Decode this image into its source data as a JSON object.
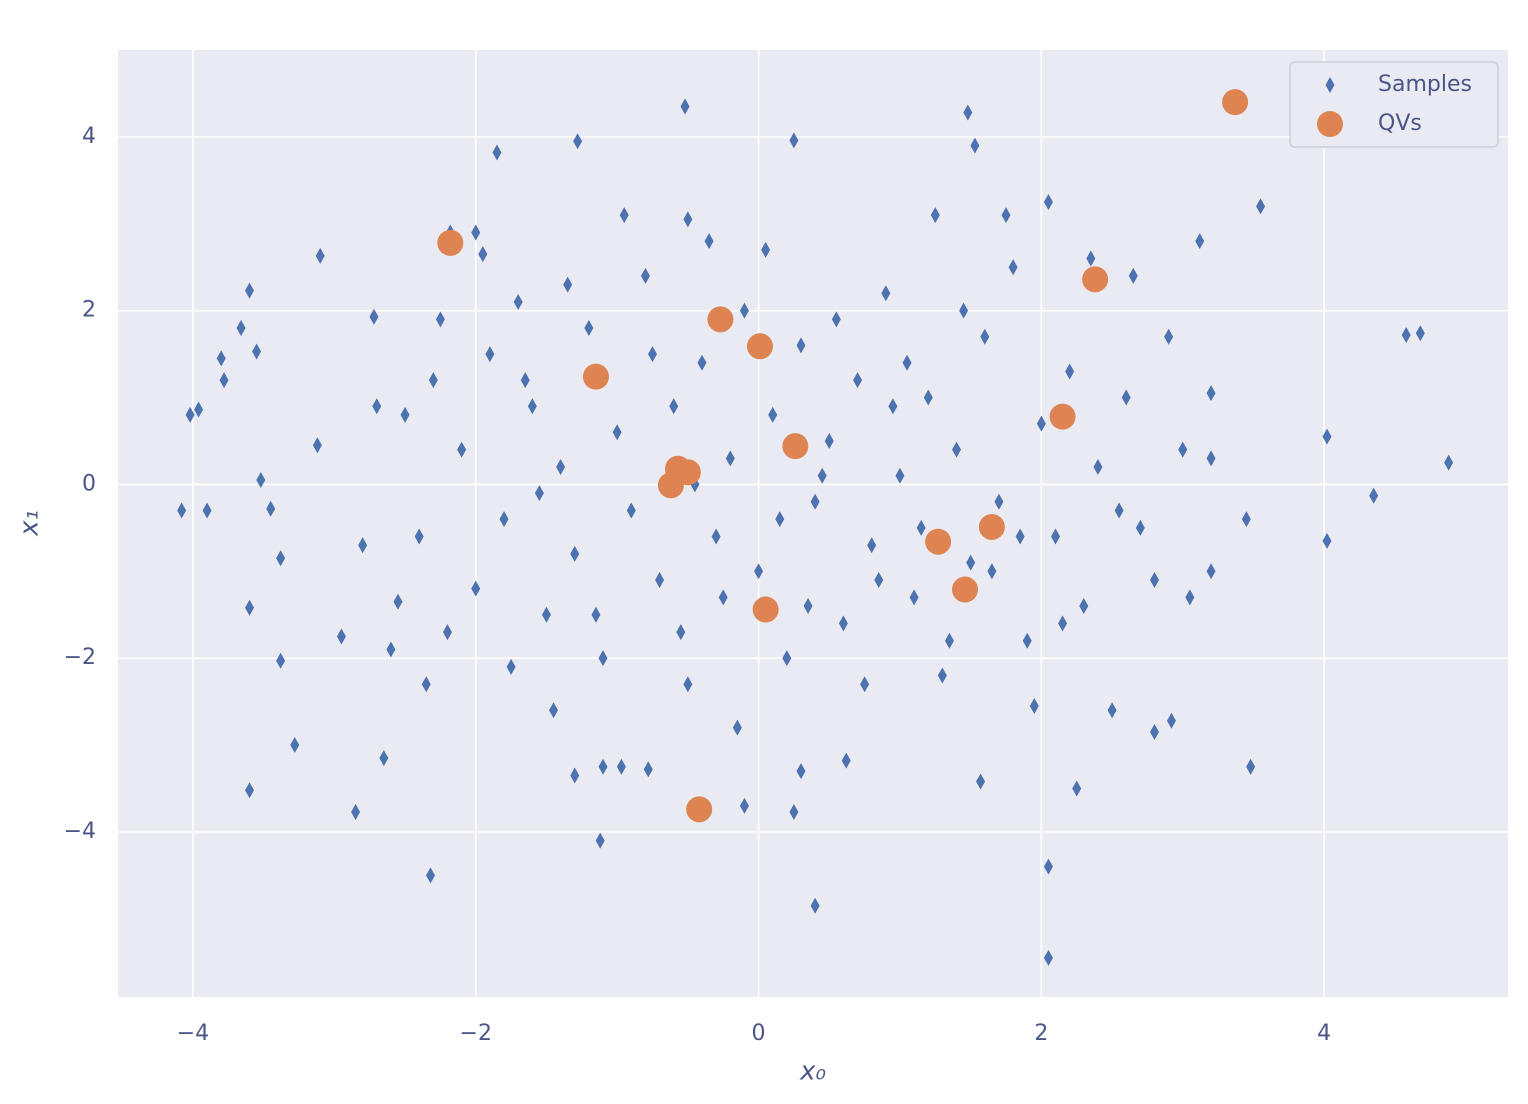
{
  "chart_data": {
    "type": "scatter",
    "xlabel": "x₀",
    "ylabel": "x₁",
    "xlim": [
      -4.53,
      5.3
    ],
    "ylim": [
      -5.9,
      5.0
    ],
    "xticks": [
      {
        "value": -4,
        "label": "−4"
      },
      {
        "value": -2,
        "label": "−2"
      },
      0,
      2,
      4
    ],
    "yticks": [
      {
        "value": -4,
        "label": "−4"
      },
      {
        "value": -2,
        "label": "−2"
      },
      0,
      2,
      4
    ],
    "grid": true,
    "legend": "upper right",
    "series": [
      {
        "name": "Samples",
        "color": "#4c72b0",
        "marker": "diamond",
        "x": [
          -4.08,
          -4.02,
          -3.96,
          -3.9,
          -3.8,
          -3.78,
          -3.66,
          -3.6,
          -3.6,
          -3.6,
          -3.55,
          -3.52,
          -3.45,
          -3.38,
          -3.38,
          -3.28,
          -3.1,
          -3.12,
          -2.85,
          -2.72,
          -2.65,
          -2.32,
          -2.18,
          -1.85,
          -1.28,
          -1.12,
          -0.52,
          -0.5,
          0.25,
          0.4,
          0.25,
          1.48,
          1.53,
          2.05,
          2.05,
          2.05,
          2.25,
          3.55,
          3.48,
          3.45,
          4.02,
          4.02,
          4.35,
          4.58,
          4.68,
          4.88,
          3.2,
          3.12,
          2.92,
          2.8,
          -0.1,
          -1.1,
          -0.97,
          -0.78,
          0.3,
          0.62,
          1.57,
          -1.3,
          -2.95,
          -2.6,
          -2.5,
          -2.4,
          -2.3,
          -2.2,
          -2.1,
          -2.0,
          -1.9,
          -1.8,
          -1.7,
          -1.6,
          -1.5,
          -1.4,
          -1.3,
          -1.2,
          -1.1,
          -1.0,
          -0.9,
          -0.8,
          -0.7,
          -0.6,
          -0.5,
          -0.4,
          -0.3,
          -0.2,
          -0.1,
          0.0,
          0.1,
          0.2,
          0.3,
          0.4,
          0.5,
          0.6,
          0.7,
          0.8,
          0.9,
          1.0,
          1.1,
          1.2,
          1.3,
          1.4,
          1.5,
          1.6,
          1.7,
          1.8,
          1.9,
          2.0,
          2.1,
          2.2,
          2.3,
          2.4,
          2.5,
          2.6,
          2.7,
          2.8,
          2.9,
          3.0,
          3.05,
          3.2,
          3.2,
          -2.8,
          -2.7,
          -2.55,
          -2.35,
          -2.25,
          -1.95,
          -1.75,
          -1.55,
          -1.35,
          -1.15,
          -0.95,
          -0.75,
          -0.55,
          -0.35,
          -0.15,
          0.05,
          0.15,
          0.35,
          0.55,
          0.75,
          0.95,
          1.15,
          1.25,
          1.35,
          1.45,
          1.65,
          1.75,
          1.85,
          1.95,
          2.15,
          2.35,
          2.55,
          2.65,
          -2.0,
          -1.65,
          -0.45,
          0.45,
          -0.25,
          0.85,
          1.05,
          -1.45
        ],
        "y": [
          -0.3,
          0.8,
          0.86,
          -0.3,
          1.45,
          1.2,
          1.8,
          2.23,
          -1.42,
          -3.52,
          1.53,
          0.05,
          -0.28,
          -2.03,
          -0.85,
          -3.0,
          2.63,
          0.45,
          -3.77,
          1.93,
          -3.15,
          -4.5,
          2.9,
          3.82,
          3.95,
          -4.1,
          4.35,
          3.05,
          3.96,
          -4.85,
          -3.77,
          4.28,
          3.9,
          3.25,
          -4.4,
          -5.45,
          -3.5,
          3.2,
          -3.25,
          -0.4,
          0.55,
          -0.65,
          -0.13,
          1.72,
          1.74,
          0.25,
          1.05,
          2.8,
          -2.72,
          -2.85,
          -3.7,
          -3.25,
          -3.25,
          -3.28,
          -3.3,
          -3.18,
          -3.42,
          -3.35,
          -1.75,
          -1.9,
          0.8,
          -0.6,
          1.2,
          -1.7,
          0.4,
          -1.2,
          1.5,
          -0.4,
          2.1,
          0.9,
          -1.5,
          0.2,
          -0.8,
          1.8,
          -2.0,
          0.6,
          -0.3,
          2.4,
          -1.1,
          0.9,
          -2.3,
          1.4,
          -0.6,
          0.3,
          2.0,
          -1.0,
          0.8,
          -2.0,
          1.6,
          -0.2,
          0.5,
          -1.6,
          1.2,
          -0.7,
          2.2,
          0.1,
          -1.3,
          1.0,
          -2.2,
          0.4,
          -0.9,
          1.7,
          -0.2,
          2.5,
          -1.8,
          0.7,
          -0.6,
          1.3,
          -1.4,
          0.2,
          -2.6,
          1.0,
          -0.5,
          -1.1,
          1.7,
          0.4,
          -1.3,
          0.3,
          -1.0,
          -0.7,
          0.9,
          -1.35,
          -2.3,
          1.9,
          2.65,
          -2.1,
          -0.1,
          2.3,
          -1.5,
          3.1,
          1.5,
          -1.7,
          2.8,
          -2.8,
          2.7,
          -0.4,
          -1.4,
          1.9,
          -2.3,
          0.9,
          -0.5,
          3.1,
          -1.8,
          2.0,
          -1.0,
          3.1,
          -0.6,
          -2.55,
          -1.6,
          2.6,
          -0.3,
          2.4,
          2.9,
          1.2,
          0.0,
          0.1,
          -1.3,
          -1.1,
          1.4,
          -2.6
        ]
      },
      {
        "name": "QVs",
        "color": "#dd8452",
        "marker": "circle",
        "x": [
          -2.18,
          3.37,
          2.38,
          -0.27,
          0.01,
          -1.15,
          2.15,
          0.26,
          -0.57,
          -0.5,
          -0.62,
          1.65,
          1.27,
          1.46,
          0.05,
          -0.42
        ],
        "y": [
          2.78,
          4.4,
          2.36,
          1.9,
          1.59,
          1.24,
          0.78,
          0.44,
          0.18,
          0.14,
          -0.01,
          -0.49,
          -0.66,
          -1.21,
          -1.44,
          -3.74
        ]
      }
    ]
  }
}
